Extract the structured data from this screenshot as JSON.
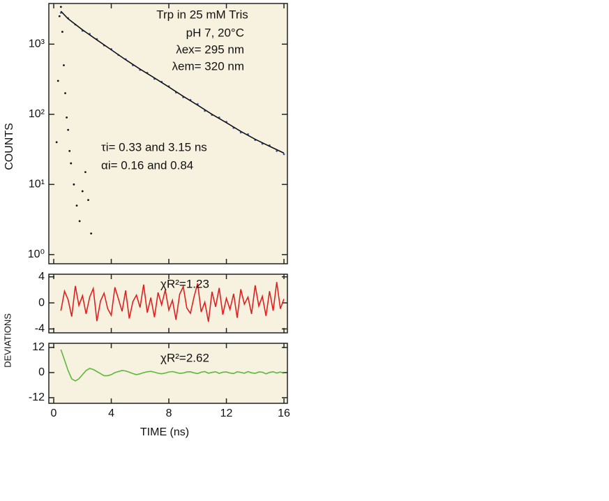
{
  "chart_data": [
    {
      "type": "line",
      "ylabel": "COUNTS",
      "yscale": "log",
      "xlim": [
        -0.34,
        16.24
      ],
      "xticks": [
        0,
        4,
        8,
        12,
        16
      ],
      "ylim": [
        0.74,
        3800
      ],
      "yticks": [
        {
          "value": 1,
          "label": "10⁰"
        },
        {
          "value": 10,
          "label": "10¹"
        },
        {
          "value": 100,
          "label": "10²"
        },
        {
          "value": 1000,
          "label": "10³"
        }
      ],
      "annotations": [
        "Trp in 25 mM Tris",
        "pH 7, 20°C",
        "λex= 295 nm",
        "λem= 320 nm",
        "τi= 0.33 and 3.15 ns",
        "αi= 0.16 and 0.84"
      ],
      "series": [
        {
          "color": "#3a55b8",
          "marker": "dot",
          "x": [
            0.5,
            1,
            1.5,
            2,
            2.5,
            3,
            3.5,
            4,
            4.5,
            5,
            5.5,
            6,
            6.5,
            7,
            7.5,
            8,
            8.5,
            9,
            9.5,
            10,
            10.5,
            11,
            11.5,
            12,
            12.5,
            13,
            13.5,
            14,
            14.5,
            15,
            15.5,
            16
          ],
          "values": [
            2800,
            2350,
            1900,
            1550,
            1400,
            1180,
            960,
            850,
            700,
            610,
            500,
            430,
            390,
            320,
            290,
            250,
            205,
            175,
            160,
            140,
            112,
            98,
            90,
            78,
            64,
            55,
            52,
            43,
            38,
            36,
            30,
            27
          ]
        },
        {
          "color": "#111111",
          "marker": "line",
          "x": [
            0.5,
            1,
            2,
            3,
            4,
            5,
            6,
            7,
            8,
            9,
            10,
            11,
            12,
            13,
            14,
            15,
            16
          ],
          "values": [
            2950,
            2300,
            1600,
            1150,
            830,
            600,
            440,
            330,
            245,
            180,
            135,
            100,
            76,
            57,
            44,
            35,
            28
          ]
        },
        {
          "color": "#111111",
          "marker": "dot",
          "x": [
            0.2,
            0.3,
            0.4,
            0.5,
            0.6,
            0.7,
            0.8,
            0.9,
            1.0,
            1.1,
            1.2,
            1.4,
            1.6,
            1.8,
            2.0,
            2.2,
            2.4,
            2.6
          ],
          "values": [
            40,
            300,
            2500,
            3400,
            1500,
            500,
            200,
            90,
            60,
            30,
            20,
            10,
            5,
            3,
            8,
            15,
            6,
            2
          ]
        }
      ]
    },
    {
      "type": "line",
      "ylabel": "DEVIATIONS",
      "xlim": [
        -0.34,
        16.24
      ],
      "xticks": [
        0,
        4,
        8,
        12,
        16
      ],
      "ylim": [
        -4.6,
        4.4
      ],
      "yticks": [
        -4,
        0,
        4
      ],
      "annotations": [
        "χR²=1.23"
      ],
      "series": [
        {
          "color": "#e02020",
          "marker": "line",
          "x": [
            0.5,
            0.75,
            1,
            1.25,
            1.5,
            1.75,
            2,
            2.25,
            2.5,
            2.75,
            3,
            3.25,
            3.5,
            3.75,
            4,
            4.25,
            4.5,
            4.75,
            5,
            5.25,
            5.5,
            5.75,
            6,
            6.25,
            6.5,
            6.75,
            7,
            7.25,
            7.5,
            7.75,
            8,
            8.25,
            8.5,
            8.75,
            9,
            9.25,
            9.5,
            9.75,
            10,
            10.25,
            10.5,
            10.75,
            11,
            11.25,
            11.5,
            11.75,
            12,
            12.25,
            12.5,
            12.75,
            13,
            13.25,
            13.5,
            13.75,
            14,
            14.25,
            14.5,
            14.75,
            15,
            15.25,
            15.5,
            15.75,
            16
          ],
          "values": [
            -1.2,
            1.8,
            0.5,
            -2.1,
            2.6,
            -0.4,
            1.1,
            -1.7,
            0.9,
            2.2,
            -2.8,
            0.3,
            1.5,
            -0.9,
            -1.9,
            2.4,
            0.6,
            -1.3,
            1.9,
            -2.4,
            0.2,
            1.2,
            -0.7,
            2.8,
            -1.5,
            0.8,
            -2.2,
            1.6,
            -0.3,
            2.0,
            -1.1,
            0.4,
            -2.6,
            1.3,
            2.5,
            -0.8,
            -1.6,
            0.9,
            3.0,
            -1.4,
            0.1,
            -2.9,
            1.7,
            -0.6,
            2.3,
            -1.8,
            0.7,
            -1.0,
            1.4,
            -2.3,
            2.1,
            -0.2,
            0.9,
            -1.7,
            2.7,
            -0.5,
            1.0,
            -2.0,
            1.8,
            -1.2,
            3.2,
            -0.9,
            0.6
          ]
        }
      ]
    },
    {
      "type": "line",
      "xlabel": "TIME (ns)",
      "xlim": [
        -0.34,
        16.24
      ],
      "xticks": [
        0,
        4,
        8,
        12,
        16
      ],
      "ylim": [
        -14.7,
        14
      ],
      "yticks": [
        -12,
        0,
        12
      ],
      "annotations": [
        "χR²=2.62"
      ],
      "series": [
        {
          "color": "#5cb83a",
          "marker": "line",
          "x": [
            0.5,
            0.75,
            1,
            1.25,
            1.5,
            1.75,
            2,
            2.25,
            2.5,
            2.75,
            3,
            3.25,
            3.5,
            3.75,
            4,
            4.25,
            4.5,
            4.75,
            5,
            5.25,
            5.5,
            5.75,
            6,
            6.25,
            6.5,
            6.75,
            7,
            7.25,
            7.5,
            7.75,
            8,
            8.25,
            8.5,
            8.75,
            9,
            9.25,
            9.5,
            9.75,
            10,
            10.25,
            10.5,
            10.75,
            11,
            11.25,
            11.5,
            11.75,
            12,
            12.25,
            12.5,
            12.75,
            13,
            13.25,
            13.5,
            13.75,
            14,
            14.25,
            14.5,
            14.75,
            15,
            15.25,
            15.5,
            15.75,
            16
          ],
          "values": [
            11,
            6,
            1,
            -3,
            -4,
            -3,
            -1,
            1,
            2,
            1.5,
            0.5,
            -0.5,
            -1.5,
            -1.5,
            -1,
            0,
            0.5,
            1,
            0.8,
            0.2,
            -0.5,
            -1,
            -0.6,
            0,
            0.4,
            0.6,
            0.2,
            -0.3,
            -0.6,
            -0.2,
            0.3,
            0.5,
            0.1,
            -0.4,
            -0.2,
            0.3,
            0.4,
            -0.1,
            -0.5,
            0.2,
            0.5,
            -0.3,
            0.1,
            0.4,
            -0.4,
            0.2,
            0.3,
            -0.2,
            -0.5,
            0.4,
            0.1,
            -0.3,
            0.5,
            -0.1,
            -0.4,
            0.3,
            0.2,
            -0.6,
            0.1,
            0.4,
            -0.2,
            0.3,
            -0.4
          ]
        }
      ]
    }
  ]
}
